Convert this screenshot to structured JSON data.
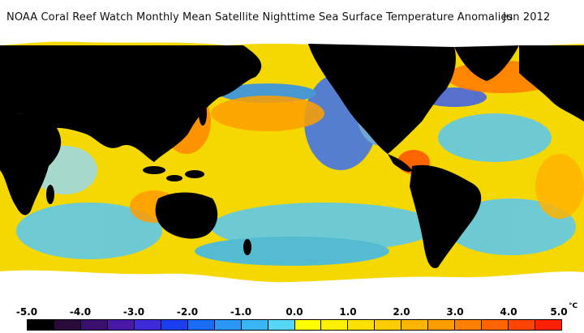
{
  "header": {
    "title": "NOAA Coral Reef Watch Monthly Mean Satellite Nighttime Sea Surface Temperature Anomalies",
    "date": "Jun 2012"
  },
  "legend": {
    "labels": [
      "-5.0",
      "-4.0",
      "-3.0",
      "-2.0",
      "-1.0",
      "0.0",
      "1.0",
      "2.0",
      "3.0",
      "4.0",
      "5.0"
    ],
    "unit": "°C",
    "colors": [
      "#000000",
      "#2a0a3a",
      "#3b0f6e",
      "#4a18a8",
      "#3e2ad8",
      "#1b3ef0",
      "#1b6cf4",
      "#2a96f6",
      "#3ab6f6",
      "#56d6f8",
      "#ffff00",
      "#fff000",
      "#ffe000",
      "#ffcc00",
      "#ffb400",
      "#ff9c00",
      "#ff8000",
      "#ff6400",
      "#ff4400",
      "#ff2000"
    ]
  },
  "map": {
    "ocean_base": "#f5d800",
    "land_color": "#000000",
    "ice_color": "#ffffff"
  }
}
